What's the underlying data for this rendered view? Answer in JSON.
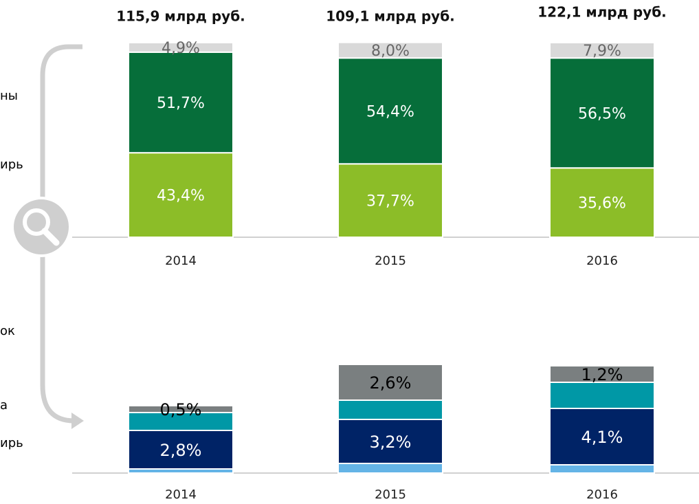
{
  "side_labels": [
    "ны",
    "ирь",
    "ок",
    "а",
    "ирь"
  ],
  "chart_data": [
    {
      "type": "stacked_bar",
      "annotations": [
        "115,9 млрд руб.",
        "109,1 млрд руб.",
        "122,1 млрд руб."
      ],
      "categories": [
        "2014",
        "2015",
        "2016"
      ],
      "ylim": [
        0,
        100
      ],
      "series": [
        {
          "color": "#8cbd28",
          "values": [
            43.4,
            37.7,
            35.6
          ],
          "value_labels": [
            "43,4%",
            "37,7%",
            "35,6%"
          ]
        },
        {
          "color": "#066e3a",
          "values": [
            51.7,
            54.4,
            56.5
          ],
          "value_labels": [
            "51,7%",
            "54,4%",
            "56,5%"
          ]
        },
        {
          "color": "#d9d9d9",
          "values": [
            4.9,
            8.0,
            7.9
          ],
          "value_labels": [
            "4,9%",
            "8,0%",
            "7,9%"
          ]
        }
      ]
    },
    {
      "type": "stacked_bar",
      "categories": [
        "2014",
        "2015",
        "2016"
      ],
      "ylim": [
        0,
        8
      ],
      "series": [
        {
          "color": "#64b4e6",
          "values": [
            0.3,
            0.7,
            0.6
          ],
          "value_labels": [
            null,
            null,
            null
          ]
        },
        {
          "color": "#002366",
          "values": [
            2.8,
            3.2,
            4.1
          ],
          "value_labels": [
            "2,8%",
            "3,2%",
            "4,1%"
          ]
        },
        {
          "color": "#0098a6",
          "values": [
            1.3,
            1.4,
            1.9
          ],
          "value_labels": [
            null,
            null,
            null
          ]
        },
        {
          "color": "#7a7f80",
          "values": [
            0.5,
            2.6,
            1.2
          ],
          "value_labels": [
            "0,5%",
            "2,6%",
            "1,2%"
          ]
        }
      ]
    }
  ]
}
